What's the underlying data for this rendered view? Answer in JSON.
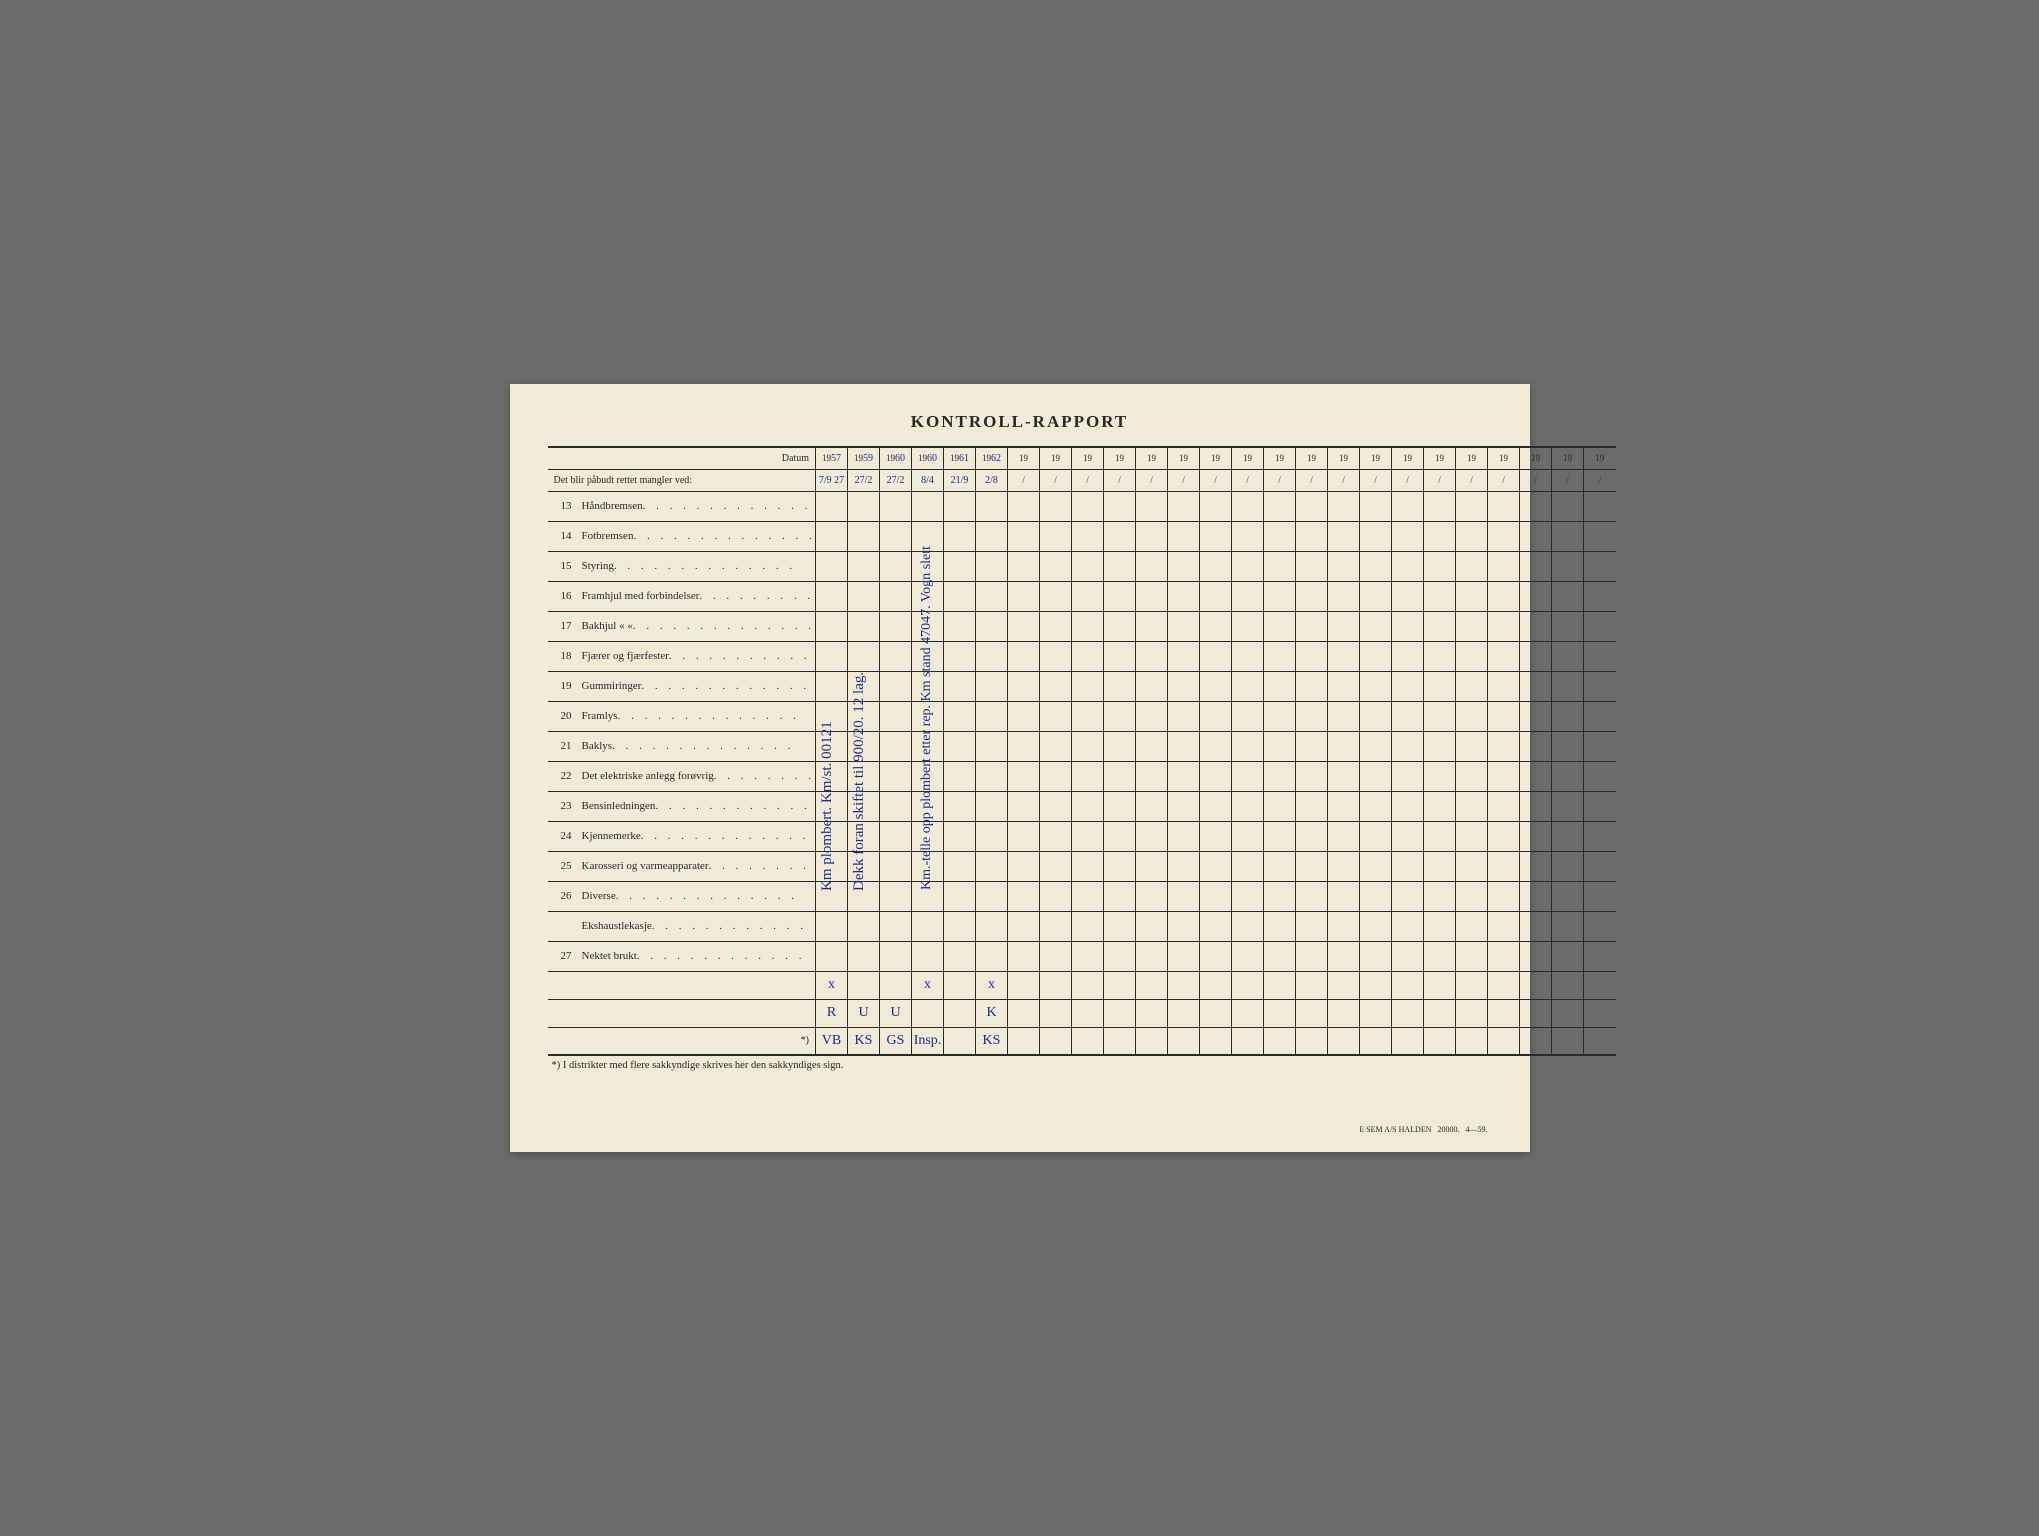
{
  "title": "KONTROLL-RAPPORT",
  "header": {
    "datum_label": "Datum",
    "subheader_label": "Det blir påbudt rettet mangler ved:",
    "year_prefix": "19",
    "handwritten_years": [
      "57",
      "59",
      "60",
      "60",
      "61",
      "62"
    ],
    "handwritten_dates": [
      "7/9 27",
      "27/2",
      "27/2",
      "8/4",
      "21/9",
      "2/8"
    ]
  },
  "column_count": 25,
  "items": [
    {
      "num": "13",
      "label": "Håndbremsen"
    },
    {
      "num": "14",
      "label": "Fotbremsen"
    },
    {
      "num": "15",
      "label": "Styring"
    },
    {
      "num": "16",
      "label": "Framhjul med forbindelser"
    },
    {
      "num": "17",
      "label": "Bakhjul      «          «"
    },
    {
      "num": "18",
      "label": "Fjærer og fjærfester"
    },
    {
      "num": "19",
      "label": "Gummiringer"
    },
    {
      "num": "20",
      "label": "Framlys"
    },
    {
      "num": "21",
      "label": "Baklys"
    },
    {
      "num": "22",
      "label": "Det elektriske anlegg forøvrig"
    },
    {
      "num": "23",
      "label": "Bensinledningen"
    },
    {
      "num": "24",
      "label": "Kjennemerke"
    },
    {
      "num": "25",
      "label": "Karosseri og varmeapparater"
    },
    {
      "num": "26",
      "label": "Diverse"
    },
    {
      "num": "",
      "label": "Ekshaustlekasje"
    },
    {
      "num": "27",
      "label": "Nektet brukt"
    }
  ],
  "vertical_notes": {
    "col2_note": "Km plombert. Km/st. 00121",
    "col3_note": "Dekk foran skiftet til 900/20. 12 lag.",
    "col5_note": "Km.-telle opp plombert etter rep. Km stand 47047. Vogn slett"
  },
  "footer_marks": {
    "row1": [
      "x",
      "",
      "",
      "x",
      "",
      "x"
    ],
    "row2": [
      "R",
      "U",
      "U",
      "",
      "",
      "K"
    ],
    "row3": [
      "VB",
      "KS",
      "GS",
      "Insp.",
      "",
      "KS"
    ]
  },
  "footer_star_label": "*)",
  "footnote": "*) I distrikter med flere sakkyndige skrives her den sakkyndiges sign.",
  "print_info": {
    "publisher": "E SEM A/S HALDEN",
    "batch": "20000.",
    "code": "4—59."
  },
  "colors": {
    "paper": "#f0ead6",
    "ink": "#2a2a2a",
    "pen": "#1a2e8f",
    "background": "#6b6b6b"
  }
}
